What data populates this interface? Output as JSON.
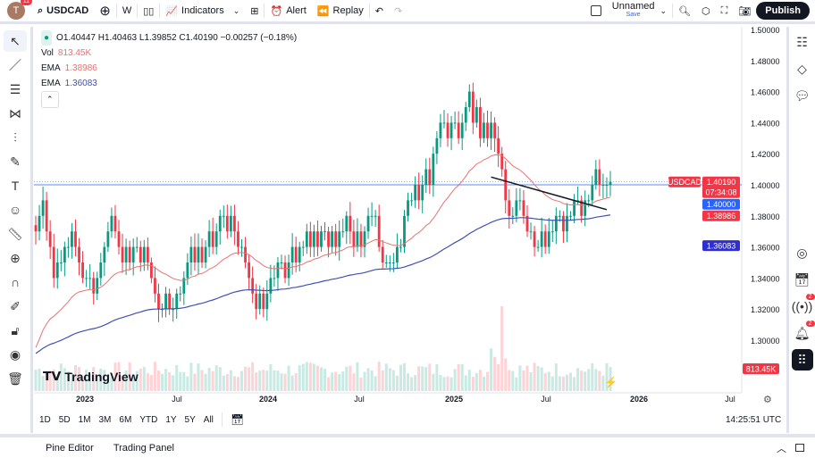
{
  "header": {
    "avatar_letter": "T",
    "notifications": "11",
    "symbol": "USDCAD",
    "interval": "W",
    "indicators": "Indicators",
    "alert": "Alert",
    "replay": "Replay",
    "layout_name": "Unnamed",
    "save": "Save",
    "publish": "Publish"
  },
  "legend": {
    "ohlc": "O1.40447 H1.40463 L1.39852 C1.40190 −0.00257 (−0.18%)",
    "vol_label": "Vol",
    "vol_value": "813.45K",
    "ema1_label": "EMA",
    "ema1_value": "1.38986",
    "ema2_label": "EMA",
    "ema2_value": "1.36083"
  },
  "price_labels": {
    "symbol": "USDCAD",
    "last": "1.40190",
    "countdown": "07:34:08",
    "hline": "1.40000",
    "ema1": "1.38986",
    "ema2": "1.36083",
    "volume": "813.45K"
  },
  "colors": {
    "up": "#089981",
    "down": "#f23645",
    "ema_fast": "#e57373",
    "ema_slow": "#3f51b5",
    "hline": "#2962ff"
  },
  "bottom": {
    "pine_editor": "Pine Editor",
    "trading_panel": "Trading Panel",
    "time": "14:25:51 UTC"
  },
  "ranges": [
    "1D",
    "5D",
    "1M",
    "3M",
    "6M",
    "YTD",
    "1Y",
    "5Y",
    "All"
  ],
  "logo": "TradingView",
  "right_badges": [
    "2",
    "2"
  ],
  "chart_data": {
    "type": "candlestick",
    "symbol": "USDCAD",
    "interval": "W",
    "ylim": [
      1.29,
      1.5
    ],
    "yticks": [
      "1.50000",
      "1.48000",
      "1.46000",
      "1.44000",
      "1.42000",
      "1.40000",
      "1.38000",
      "1.36000",
      "1.34000",
      "1.32000",
      "1.30000"
    ],
    "xticks": [
      "2023",
      "Jul",
      "2024",
      "Jul",
      "2025",
      "Jul",
      "2026",
      "Jul"
    ],
    "weekly_closes": [
      1.37,
      1.38,
      1.39,
      1.37,
      1.36,
      1.34,
      1.35,
      1.35,
      1.36,
      1.36,
      1.37,
      1.36,
      1.35,
      1.34,
      1.34,
      1.34,
      1.33,
      1.34,
      1.35,
      1.36,
      1.37,
      1.38,
      1.37,
      1.36,
      1.35,
      1.36,
      1.35,
      1.36,
      1.36,
      1.35,
      1.36,
      1.35,
      1.34,
      1.33,
      1.32,
      1.32,
      1.33,
      1.32,
      1.32,
      1.33,
      1.33,
      1.34,
      1.35,
      1.36,
      1.35,
      1.36,
      1.35,
      1.36,
      1.37,
      1.36,
      1.37,
      1.38,
      1.38,
      1.37,
      1.38,
      1.37,
      1.36,
      1.36,
      1.35,
      1.34,
      1.33,
      1.32,
      1.33,
      1.32,
      1.33,
      1.34,
      1.34,
      1.35,
      1.35,
      1.34,
      1.35,
      1.36,
      1.35,
      1.36,
      1.36,
      1.37,
      1.36,
      1.37,
      1.36,
      1.37,
      1.37,
      1.36,
      1.37,
      1.36,
      1.37,
      1.37,
      1.38,
      1.37,
      1.36,
      1.37,
      1.36,
      1.37,
      1.38,
      1.38,
      1.38,
      1.36,
      1.35,
      1.35,
      1.35,
      1.35,
      1.36,
      1.36,
      1.38,
      1.39,
      1.39,
      1.4,
      1.39,
      1.4,
      1.41,
      1.4,
      1.42,
      1.43,
      1.44,
      1.44,
      1.43,
      1.44,
      1.44,
      1.43,
      1.44,
      1.45,
      1.46,
      1.44,
      1.45,
      1.43,
      1.44,
      1.43,
      1.44,
      1.43,
      1.42,
      1.41,
      1.39,
      1.38,
      1.38,
      1.39,
      1.39,
      1.38,
      1.37,
      1.37,
      1.36,
      1.36,
      1.37,
      1.36,
      1.37,
      1.37,
      1.38,
      1.38,
      1.37,
      1.38,
      1.38,
      1.39,
      1.39,
      1.38,
      1.39,
      1.39,
      1.4,
      1.41,
      1.4,
      1.4,
      1.4,
      1.4019
    ],
    "horizontal_line": 1.4,
    "trendline": [
      [
        "2025-03",
        1.405
      ],
      [
        "2025-10",
        1.384
      ]
    ],
    "ema_fast_last": 1.38986,
    "ema_slow_last": 1.36083,
    "last_volume": "813.45K"
  }
}
